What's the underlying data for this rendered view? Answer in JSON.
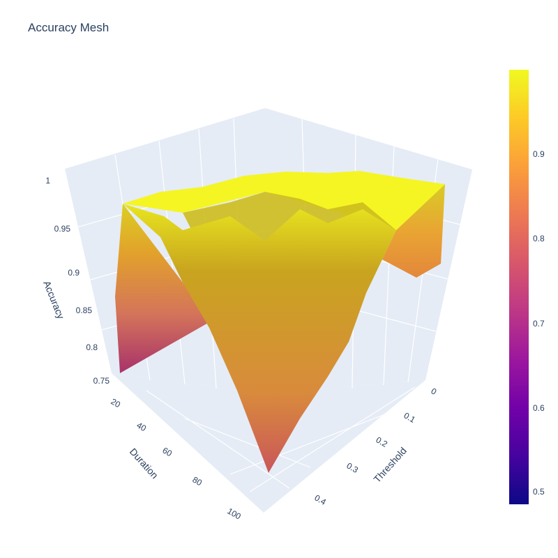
{
  "chart_data": {
    "type": "surface",
    "title": "Accuracy Mesh",
    "xlabel": "Threshold",
    "ylabel": "Duration",
    "zlabel": "Accuracy",
    "x_ticks": [
      "0",
      "0.1",
      "0.2",
      "0.3",
      "0.4"
    ],
    "y_ticks": [
      "20",
      "40",
      "60",
      "80",
      "100"
    ],
    "z_ticks": [
      "0.75",
      "0.8",
      "0.85",
      "0.9",
      "0.95",
      "1"
    ],
    "zlim": [
      0.75,
      1.0
    ],
    "colorbar": {
      "ticks": [
        "0.5",
        "0.6",
        "0.7",
        "0.8",
        "0.9"
      ],
      "range": [
        0.48,
        1.0
      ],
      "colorscale": [
        "#0d0887",
        "#46039f",
        "#7201a8",
        "#9c179e",
        "#bd3786",
        "#d8576b",
        "#ed7953",
        "#fb9f3a",
        "#fdca26",
        "#f0f921"
      ]
    },
    "surface": {
      "x": [
        0,
        0.1,
        0.2,
        0.3,
        0.4,
        0.5
      ],
      "y": [
        10,
        30,
        50,
        70,
        90,
        110
      ],
      "z": [
        [
          0.99,
          0.99,
          0.99,
          0.99,
          0.99,
          0.99
        ],
        [
          0.98,
          0.99,
          0.99,
          0.99,
          0.99,
          0.99
        ],
        [
          0.95,
          0.98,
          0.99,
          0.99,
          0.99,
          0.99
        ],
        [
          0.91,
          0.95,
          0.98,
          0.99,
          0.99,
          0.99
        ],
        [
          0.87,
          0.92,
          0.96,
          0.98,
          0.99,
          0.99
        ],
        [
          0.85,
          0.88,
          0.93,
          0.97,
          0.99,
          0.99
        ]
      ]
    }
  }
}
